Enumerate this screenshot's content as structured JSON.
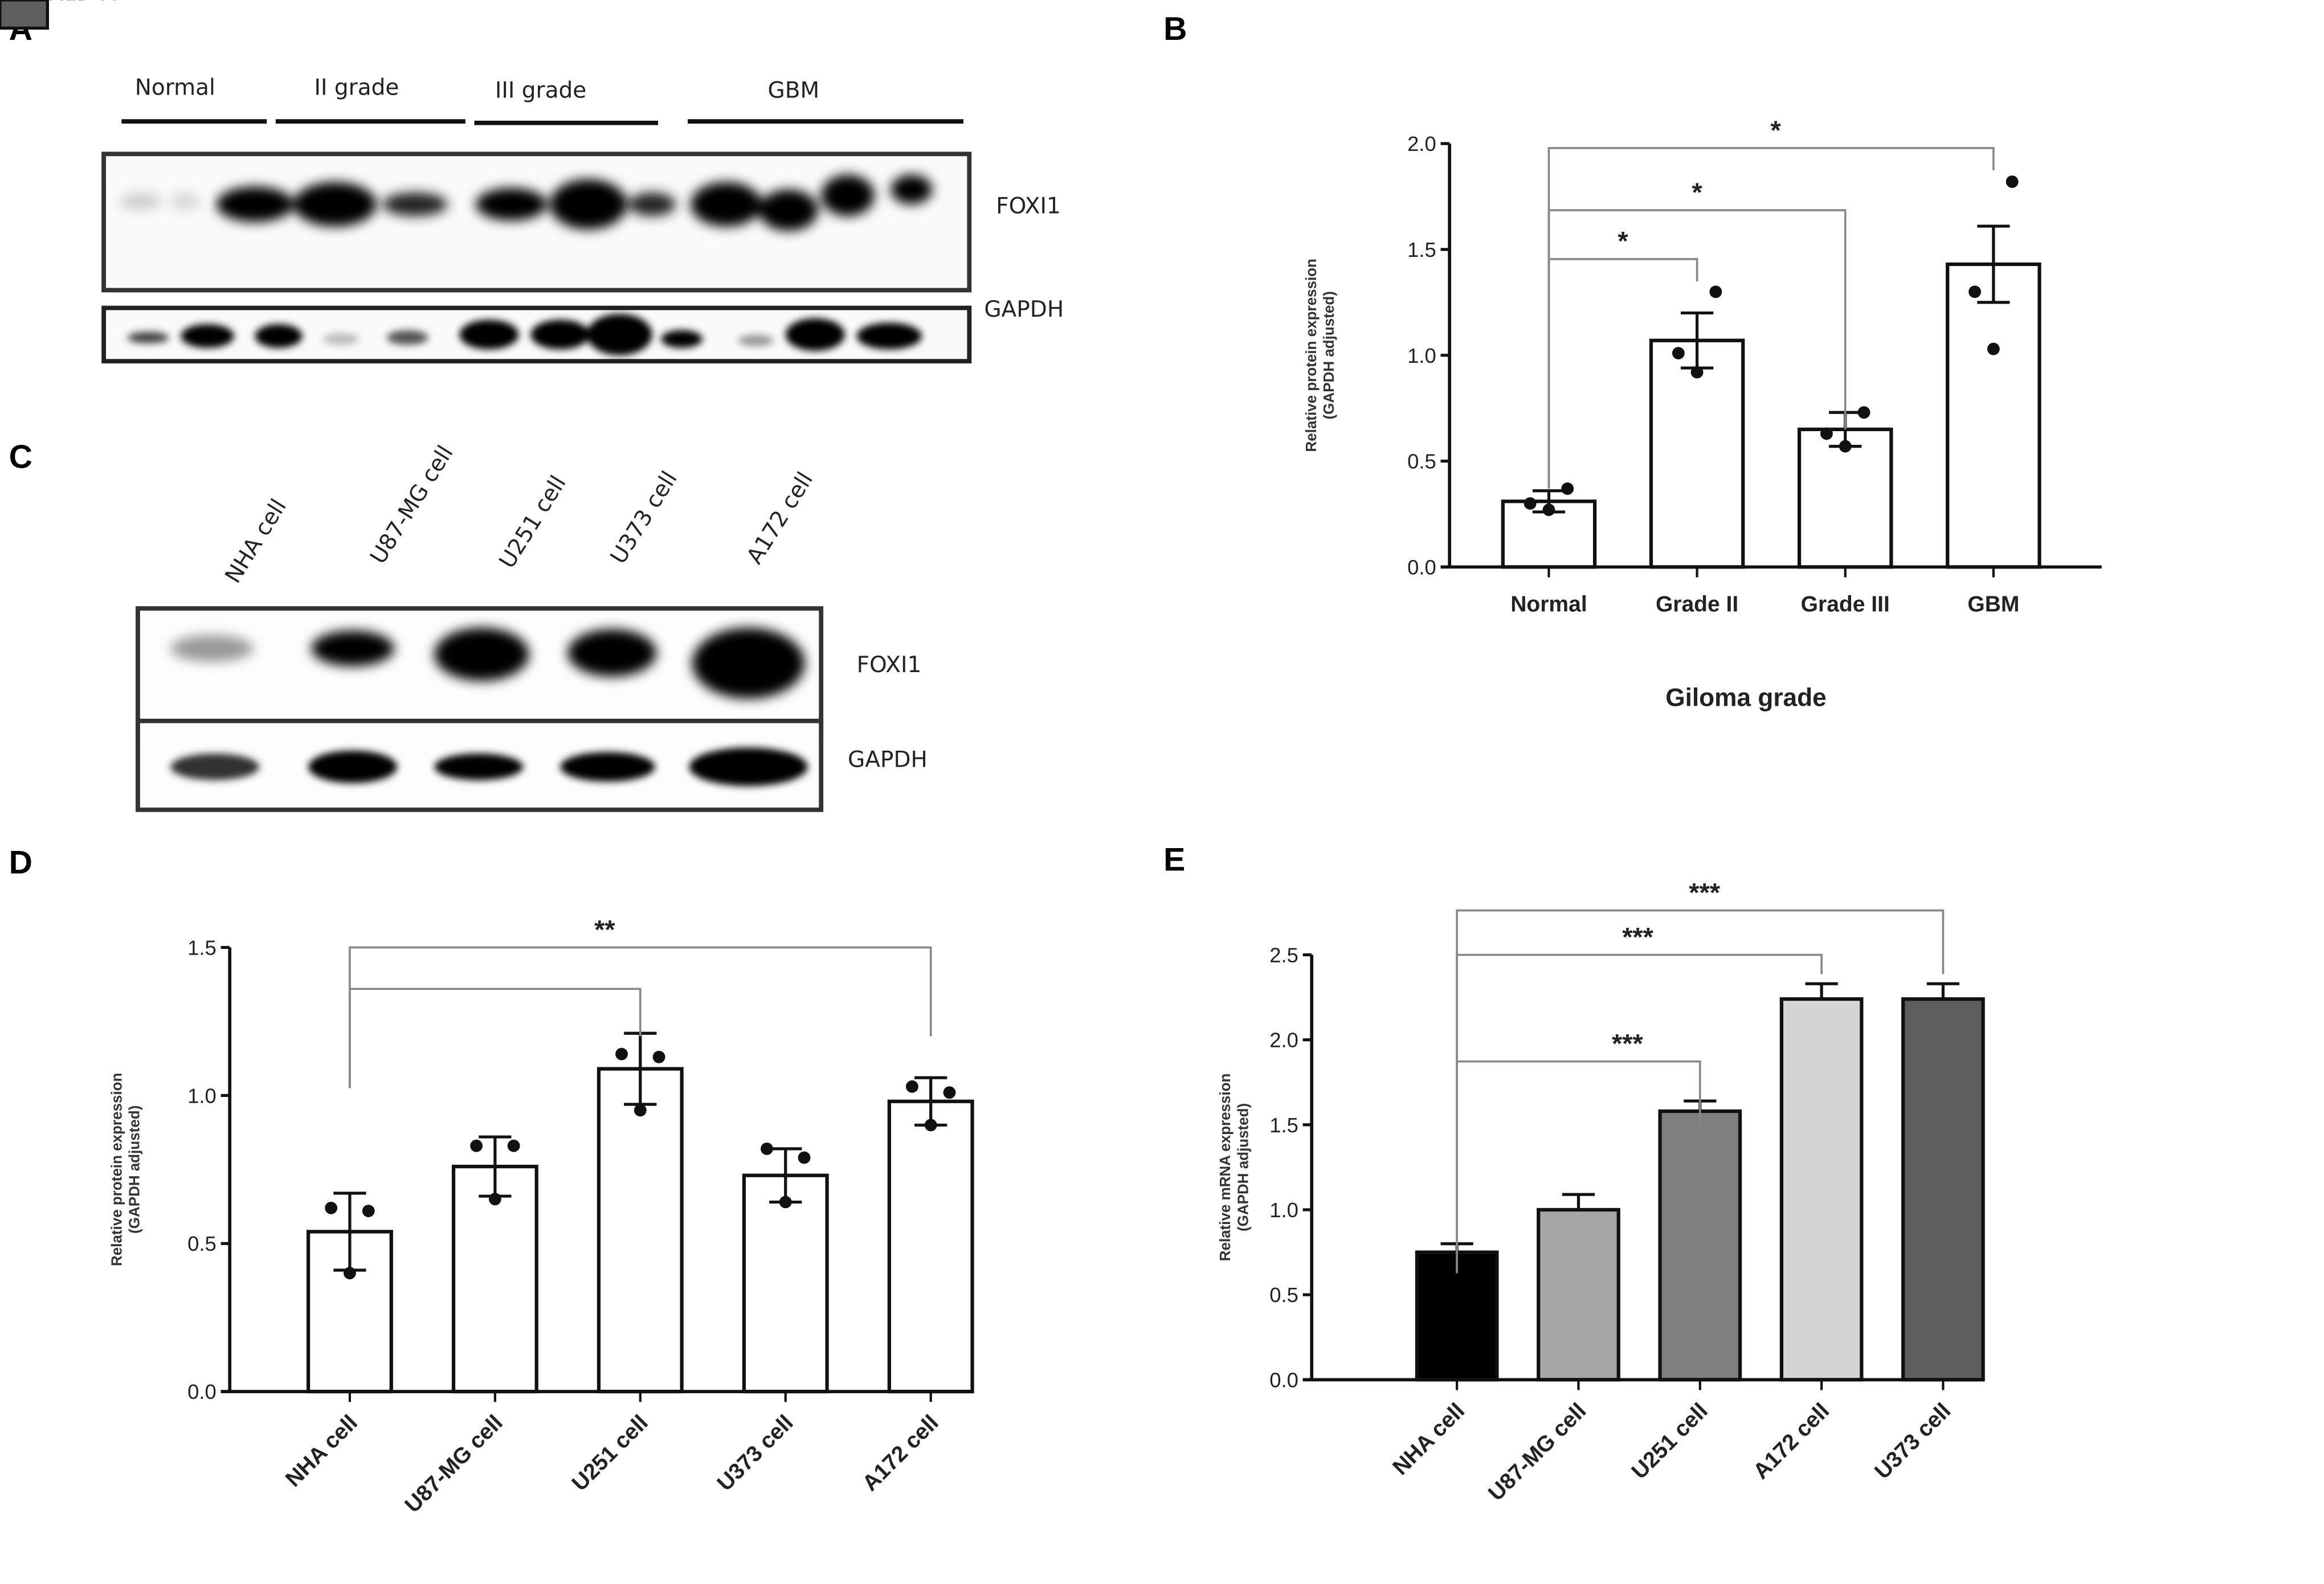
{
  "panels": {
    "A": {
      "label": "A",
      "groups": [
        "Normal",
        "II grade",
        "III grade",
        "GBM"
      ],
      "rows": [
        "FOXI1",
        "GAPDH"
      ],
      "rows_display": [
        "FOXI1",
        "GAPDH"
      ]
    },
    "B": {
      "label": "B"
    },
    "C": {
      "label": "C",
      "lanes": [
        "NHA cell",
        "U87-MG cell",
        "U251 cell",
        "U373 cell",
        "A172 cell"
      ],
      "rows": [
        "FOXI1",
        "GAPDH"
      ]
    },
    "D": {
      "label": "D"
    },
    "E": {
      "label": "E"
    }
  },
  "chart_data": [
    {
      "panel": "B",
      "type": "bar",
      "title": "",
      "categories": [
        "Normal",
        "Grade II",
        "Grade III",
        "GBM"
      ],
      "values": [
        0.31,
        1.07,
        0.65,
        1.43
      ],
      "error": [
        0.05,
        0.13,
        0.08,
        0.18
      ],
      "points": [
        [
          0.27,
          0.3,
          0.37
        ],
        [
          0.92,
          1.01,
          1.3
        ],
        [
          0.57,
          0.63,
          0.73
        ],
        [
          1.03,
          1.3,
          1.82
        ]
      ],
      "xlabel": "Giloma grade",
      "ylabel": "Relative protein expression",
      "ylabel2": "(GAPDH adjusted)",
      "ylim": [
        0,
        2.0
      ],
      "yticks": [
        "0.0",
        "0.5",
        "1.0",
        "1.5",
        "2.0"
      ],
      "bar_fill": "#ffffff",
      "grid": false,
      "significance": [
        {
          "from": "Normal",
          "to": "Grade II",
          "label": "*"
        },
        {
          "from": "Normal",
          "to": "Grade III",
          "label": "*"
        },
        {
          "from": "Normal",
          "to": "GBM",
          "label": "*"
        }
      ]
    },
    {
      "panel": "D",
      "type": "bar",
      "title": "",
      "categories": [
        "NHA cell",
        "U87-MG cell",
        "U251 cell",
        "U373 cell",
        "A172 cell"
      ],
      "values": [
        0.54,
        0.76,
        1.09,
        0.73,
        0.98
      ],
      "error": [
        0.13,
        0.1,
        0.12,
        0.09,
        0.08
      ],
      "points": [
        [
          0.4,
          0.62,
          0.61
        ],
        [
          0.65,
          0.83,
          0.83
        ],
        [
          0.95,
          1.14,
          1.13
        ],
        [
          0.64,
          0.82,
          0.79
        ],
        [
          0.9,
          1.03,
          1.01
        ]
      ],
      "xlabel": "",
      "ylabel": "Relative protein expression",
      "ylabel2": "(GAPDH adjusted)",
      "ylim": [
        0,
        1.5
      ],
      "yticks": [
        "0.0",
        "0.5",
        "1.0",
        "1.5"
      ],
      "bar_fill": "#ffffff",
      "grid": false,
      "significance": [
        {
          "from": "NHA cell",
          "to": "U251 cell",
          "label": ""
        },
        {
          "from": "NHA cell",
          "to": "A172 cell",
          "label": "**"
        }
      ]
    },
    {
      "panel": "E",
      "type": "bar",
      "title": "",
      "categories": [
        "NHA cell",
        "U87-MG cell",
        "U251 cell",
        "A172 cell",
        "U373 cell"
      ],
      "values": [
        0.75,
        1.0,
        1.58,
        2.24,
        2.24
      ],
      "error": [
        0.05,
        0.09,
        0.06,
        0.09,
        0.09
      ],
      "colors": [
        "#000000",
        "#a6a6a6",
        "#7f7f7f",
        "#d4d4d4",
        "#5e5e5e"
      ],
      "xlabel": "",
      "ylabel": "Relative mRNA expression",
      "ylabel2": "(GAPDH adjusted)",
      "ylim": [
        0,
        2.5
      ],
      "yticks": [
        "0.0",
        "0.5",
        "1.0",
        "1.5",
        "2.0",
        "2.5"
      ],
      "grid": false,
      "legend": {
        "position": "right",
        "entries": [
          "NHA cell",
          "U87-MG cell",
          "U251 cell",
          "A172 cell",
          "U373 cell"
        ]
      },
      "significance": [
        {
          "from": "NHA cell",
          "to": "U251 cell",
          "label": "***"
        },
        {
          "from": "NHA cell",
          "to": "A172 cell",
          "label": "***"
        },
        {
          "from": "NHA cell",
          "to": "U373 cell",
          "label": "***"
        }
      ]
    }
  ]
}
